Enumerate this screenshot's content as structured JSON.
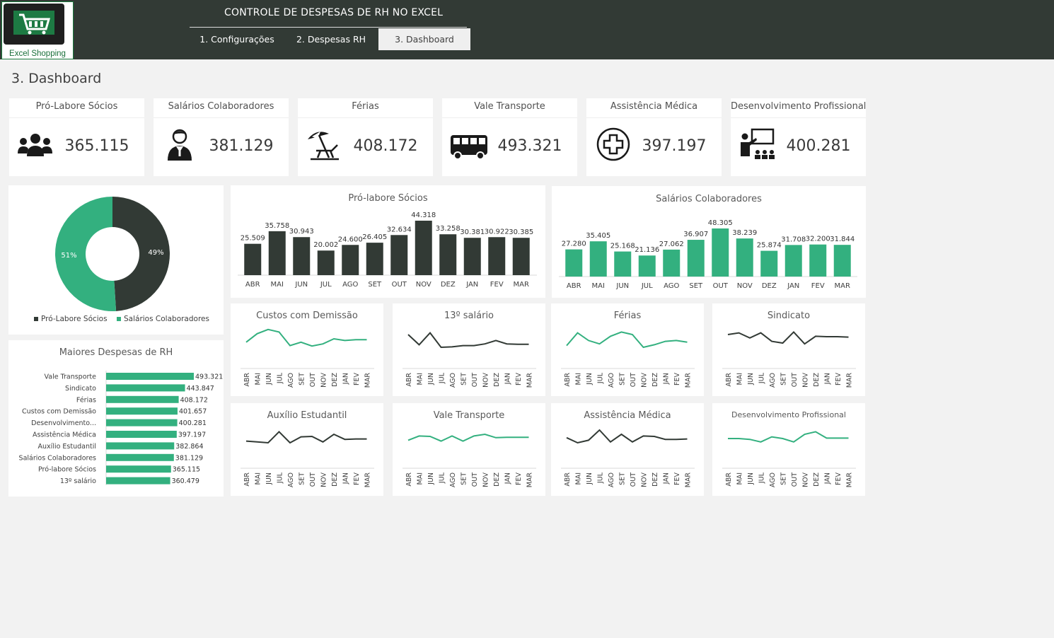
{
  "app": {
    "logo_text": "Excel Shopping",
    "title": "CONTROLE DE DESPESAS DE RH NO EXCEL",
    "tabs": [
      {
        "label": "1. Configurações"
      },
      {
        "label": "2. Despesas RH"
      },
      {
        "label": "3. Dashboard"
      }
    ],
    "active_tab": 2,
    "page_title": "3. Dashboard"
  },
  "colors": {
    "dark": "#323a35",
    "green": "#33b07f",
    "header_bg": "#323a35"
  },
  "kpis": [
    {
      "title": "Pró-Labore Sócios",
      "value": "365.115",
      "icon": "people-group-icon"
    },
    {
      "title": "Salários Colaboradores",
      "value": "381.129",
      "icon": "businessman-icon"
    },
    {
      "title": "Férias",
      "value": "408.172",
      "icon": "beach-umbrella-icon"
    },
    {
      "title": "Vale Transporte",
      "value": "493.321",
      "icon": "bus-icon"
    },
    {
      "title": "Assistência Médica",
      "value": "397.197",
      "icon": "medical-cross-icon"
    },
    {
      "title": "Desenvolvimento Profissional",
      "value": "400.281",
      "icon": "teacher-presentation-icon"
    }
  ],
  "chart_data": [
    {
      "id": "donut",
      "type": "pie",
      "categories": [
        "Pró-Labore Sócios",
        "Salários Colaboradores"
      ],
      "values": [
        49,
        51
      ],
      "data_labels": [
        "49%",
        "51%"
      ],
      "colors": [
        "#323a35",
        "#33b07f"
      ],
      "legend": "bottom"
    },
    {
      "id": "pro_labore",
      "type": "bar",
      "title": "Pró-labore Sócios",
      "categories": [
        "ABR",
        "MAI",
        "JUN",
        "JUL",
        "AGO",
        "SET",
        "OUT",
        "NOV",
        "DEZ",
        "JAN",
        "FEV",
        "MAR"
      ],
      "values": [
        25509,
        35758,
        30943,
        20002,
        24600,
        26405,
        32634,
        44318,
        33258,
        30381,
        30922,
        30385
      ],
      "labels": [
        "25.509",
        "35.758",
        "30.943",
        "20.002",
        "24.600",
        "26.405",
        "32.634",
        "44.318",
        "33.258",
        "30.381",
        "30.922",
        "30.385"
      ],
      "color": "#323a35"
    },
    {
      "id": "salarios",
      "type": "bar",
      "title": "Salários Colaboradores",
      "categories": [
        "ABR",
        "MAI",
        "JUN",
        "JUL",
        "AGO",
        "SET",
        "OUT",
        "NOV",
        "DEZ",
        "JAN",
        "FEV",
        "MAR"
      ],
      "values": [
        27280,
        35405,
        25168,
        21136,
        27062,
        36907,
        48305,
        38239,
        25874,
        31708,
        32200,
        31844
      ],
      "labels": [
        "27.280",
        "35.405",
        "25.168",
        "21.136",
        "27.062",
        "36.907",
        "48.305",
        "38.239",
        "25.874",
        "31.708",
        "32.200",
        "31.844"
      ],
      "color": "#33b07f"
    },
    {
      "id": "maiores",
      "type": "bar",
      "orientation": "horizontal",
      "title": "Maiores Despesas  de RH",
      "categories": [
        "Vale Transporte",
        "Sindicato",
        "Férias",
        "Custos com Demissão",
        "Desenvolvimento...",
        "Assistência Médica",
        "Auxílio Estudantil",
        "Salários Colaboradores",
        "Pró-labore Sócios",
        "13º salário"
      ],
      "values": [
        493321,
        443847,
        408172,
        401657,
        400281,
        397197,
        382864,
        381129,
        365115,
        360479
      ],
      "labels": [
        "493.321",
        "443.847",
        "408.172",
        "401.657",
        "400.281",
        "397.197",
        "382.864",
        "381.129",
        "365.115",
        "360.479"
      ],
      "color": "#33b07f"
    },
    {
      "id": "demissao",
      "type": "line",
      "title": "Custos com Demissão",
      "categories": [
        "ABR",
        "MAI",
        "JUN",
        "JUL",
        "AGO",
        "SET",
        "OUT",
        "NOV",
        "DEZ",
        "JAN",
        "FEV",
        "MAR"
      ],
      "values": [
        42,
        62,
        72,
        66,
        34,
        42,
        33,
        38,
        50,
        46,
        48,
        48
      ],
      "color": "#33b07f"
    },
    {
      "id": "decimo",
      "type": "line",
      "title": "13º salário",
      "categories": [
        "ABR",
        "MAI",
        "JUN",
        "JUL",
        "AGO",
        "SET",
        "OUT",
        "NOV",
        "DEZ",
        "JAN",
        "FEV",
        "MAR"
      ],
      "values": [
        60,
        36,
        64,
        30,
        31,
        34,
        34,
        38,
        46,
        38,
        37,
        37
      ],
      "color": "#323a35"
    },
    {
      "id": "ferias",
      "type": "line",
      "title": "Férias",
      "categories": [
        "ABR",
        "MAI",
        "JUN",
        "JUL",
        "AGO",
        "SET",
        "OUT",
        "NOV",
        "DEZ",
        "JAN",
        "FEV",
        "MAR"
      ],
      "values": [
        34,
        64,
        46,
        38,
        56,
        66,
        60,
        30,
        36,
        44,
        46,
        42
      ],
      "color": "#33b07f"
    },
    {
      "id": "sindicato",
      "type": "line",
      "title": "Sindicato",
      "categories": [
        "ABR",
        "MAI",
        "JUN",
        "JUL",
        "AGO",
        "SET",
        "OUT",
        "NOV",
        "DEZ",
        "JAN",
        "FEV",
        "MAR"
      ],
      "values": [
        60,
        64,
        52,
        64,
        44,
        40,
        66,
        38,
        56,
        55,
        55,
        54
      ],
      "color": "#323a35"
    },
    {
      "id": "auxilio",
      "type": "line",
      "title": "Auxílio Estudantil",
      "categories": [
        "ABR",
        "MAI",
        "JUN",
        "JUL",
        "AGO",
        "SET",
        "OUT",
        "NOV",
        "DEZ",
        "JAN",
        "FEV",
        "MAR"
      ],
      "values": [
        44,
        42,
        40,
        66,
        40,
        54,
        55,
        42,
        60,
        48,
        49,
        49
      ],
      "color": "#323a35"
    },
    {
      "id": "vale",
      "type": "line",
      "title": "Vale Transporte",
      "categories": [
        "ABR",
        "MAI",
        "JUN",
        "JUL",
        "AGO",
        "SET",
        "OUT",
        "NOV",
        "DEZ",
        "JAN",
        "FEV",
        "MAR"
      ],
      "values": [
        46,
        56,
        55,
        44,
        56,
        44,
        56,
        60,
        52,
        53,
        53,
        53
      ],
      "color": "#33b07f"
    },
    {
      "id": "assistencia",
      "type": "line",
      "title": "Assistência Médica",
      "categories": [
        "ABR",
        "MAI",
        "JUN",
        "JUL",
        "AGO",
        "SET",
        "OUT",
        "NOV",
        "DEZ",
        "JAN",
        "FEV",
        "MAR"
      ],
      "values": [
        52,
        40,
        46,
        70,
        42,
        60,
        42,
        56,
        55,
        48,
        48,
        49
      ],
      "color": "#323a35"
    },
    {
      "id": "desenvolvimento",
      "type": "line",
      "title": "Desenvolvimento Profissional",
      "categories": [
        "ABR",
        "MAI",
        "JUN",
        "JUL",
        "AGO",
        "SET",
        "OUT",
        "NOV",
        "DEZ",
        "JAN",
        "FEV",
        "MAR"
      ],
      "values": [
        50,
        50,
        48,
        42,
        54,
        50,
        42,
        60,
        66,
        51,
        51,
        51
      ],
      "color": "#33b07f"
    }
  ]
}
